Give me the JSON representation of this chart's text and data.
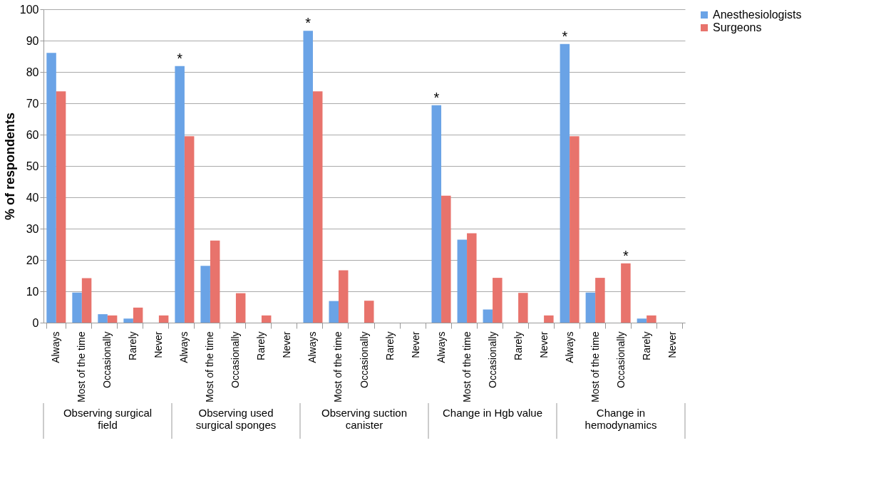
{
  "chart_data": {
    "type": "bar",
    "ylabel": "% of respondents",
    "categories": [
      "Always",
      "Most of the time",
      "Occasionally",
      "Rarely",
      "Never",
      "Always",
      "Most of the time",
      "Occasionally",
      "Rarely",
      "Never",
      "Always",
      "Most of the time",
      "Occasionally",
      "Rarely",
      "Never",
      "Always",
      "Most of the time",
      "Occasionally",
      "Rarely",
      "Never",
      "Always",
      "Most of the time",
      "Occasionally",
      "Rarely",
      "Never"
    ],
    "series": [
      {
        "name": "Anesthesiologists",
        "color": "#6aa3e6",
        "values": [
          86.1,
          9.6,
          2.7,
          1.3,
          0,
          81.9,
          18.1,
          0,
          0,
          0,
          93.1,
          6.9,
          0,
          0,
          0,
          69.4,
          26.5,
          4.2,
          0,
          0,
          88.9,
          9.6,
          0,
          1.3,
          0
        ],
        "value_labels": [
          null,
          null,
          null,
          null,
          null,
          "*",
          null,
          null,
          null,
          null,
          "*",
          null,
          null,
          null,
          null,
          "*",
          null,
          null,
          null,
          null,
          "*",
          null,
          null,
          null,
          null
        ]
      },
      {
        "name": "Surgeons",
        "color": "#e8736c",
        "values": [
          73.8,
          14.2,
          2.3,
          4.8,
          2.3,
          59.5,
          26.2,
          9.4,
          2.3,
          0,
          73.8,
          16.7,
          7.0,
          0,
          0,
          40.5,
          28.5,
          14.3,
          9.5,
          2.3,
          59.5,
          14.3,
          18.9,
          2.3,
          0
        ],
        "value_labels": [
          null,
          null,
          null,
          null,
          null,
          null,
          null,
          null,
          null,
          null,
          null,
          null,
          null,
          null,
          null,
          null,
          null,
          null,
          null,
          null,
          null,
          null,
          "*",
          null,
          null
        ]
      }
    ],
    "annotations": [
      "Observing surgical field",
      "Observing used surgical sponges",
      "Observing suction canister",
      "Change in Hgb value",
      "Change in hemodynamics"
    ],
    "ylim": [
      0,
      100
    ],
    "yticks": [
      0,
      10,
      20,
      30,
      40,
      50,
      60,
      70,
      80,
      90,
      100
    ],
    "grid": "y",
    "legend": "right"
  }
}
